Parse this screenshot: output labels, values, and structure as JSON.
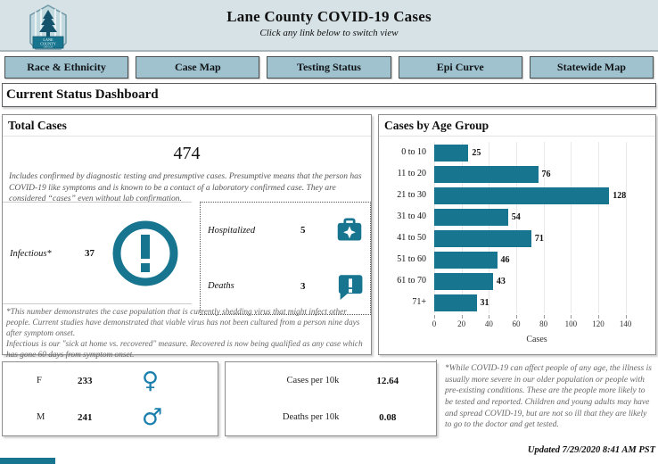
{
  "header": {
    "title": "Lane County COVID-19 Cases",
    "subtitle": "Click any link below to switch view",
    "logo_line1": "LANE",
    "logo_line2": "COUNTY",
    "logo_line3": "OREGON"
  },
  "nav": {
    "items": [
      "Race & Ethnicity",
      "Case Map",
      "Testing Status",
      "Epi Curve",
      "Statewide Map"
    ]
  },
  "page_title": "Current Status Dashboard",
  "total_cases": {
    "title": "Total Cases",
    "value": "474",
    "description": "Includes confirmed by diagnostic testing and presumptive cases. Presumptive means that the person has COVID-19 like symptoms and is known to be a contact of a laboratory confirmed case. They are considered “cases” even without lab confirmation.",
    "infectious_label": "Infectious*",
    "infectious_value": "37",
    "hospitalized_label": "Hospitalized",
    "hospitalized_value": "5",
    "deaths_label": "Deaths",
    "deaths_value": "3",
    "footnote_line1": "*This number demonstrates the case population that is currently shedding virus that might infect other people. Current studies have demonstrated that viable virus has not been cultured from a person nine days after symptom onset.",
    "footnote_line2": "Infectious is our \"sick at home vs. recovered\" measure.  Recovered is now being qualified as any case which has gone 60 days from symptom onset."
  },
  "chart_data": {
    "type": "bar",
    "orientation": "horizontal",
    "title": "Cases by Age Group",
    "categories": [
      "0 to 10",
      "11 to 20",
      "21 to 30",
      "31 to 40",
      "41 to 50",
      "51 to 60",
      "61 to 70",
      "71+"
    ],
    "values": [
      25,
      76,
      128,
      54,
      71,
      46,
      43,
      31
    ],
    "xlabel": "Cases",
    "xlim": [
      0,
      150
    ],
    "xticks": [
      0,
      20,
      40,
      60,
      80,
      100,
      120,
      140
    ],
    "bar_color": "#17758f",
    "grid": true,
    "value_labels": true
  },
  "gender": {
    "rows": [
      {
        "label": "F",
        "value": "233",
        "icon": "female"
      },
      {
        "label": "M",
        "value": "241",
        "icon": "male"
      }
    ]
  },
  "rates": {
    "rows": [
      {
        "label": "Cases per 10k",
        "value": "12.64"
      },
      {
        "label": "Deaths per 10k",
        "value": "0.08"
      }
    ]
  },
  "age_note": "*While COVID-19 can affect people of any age, the illness is usually more severe in our older population or people with pre-existing conditions. These are the people more likely to be tested and reported. Children and young adults may have and spread COVID-19, but are not so ill that they are likely to go to the doctor and get tested.",
  "footer": {
    "updated": "Updated 7/29/2020 8:41 AM PST"
  },
  "colors": {
    "accent": "#17758f",
    "header_bg": "#d7e2e6",
    "nav_bg": "#9fc2ce",
    "gender_icon": "#1b7fae"
  }
}
